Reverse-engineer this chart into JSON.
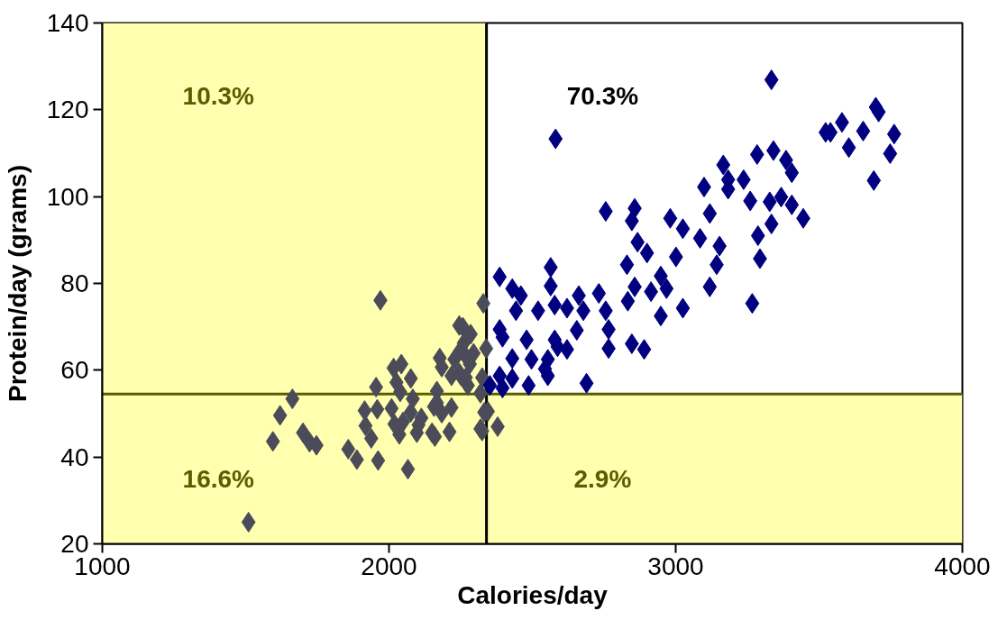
{
  "chart_data": {
    "type": "scatter",
    "xlabel": "Calories/day",
    "ylabel": "Protein/day (grams)",
    "xlim": [
      1000,
      4000
    ],
    "xticks": [
      1000,
      2000,
      3000,
      4000
    ],
    "ylim": [
      20,
      140
    ],
    "yticks": [
      20,
      40,
      60,
      80,
      100,
      120,
      140
    ],
    "grid": false,
    "marker": "diamond",
    "bands": [
      {
        "axis": "x",
        "from": 1000,
        "to": 2340,
        "color": "#ffffb0"
      },
      {
        "axis": "y",
        "from": 20,
        "to": 54.5,
        "color": "#ffffb0"
      }
    ],
    "ref_lines": [
      {
        "axis": "x",
        "value": 2340,
        "color": "#000000"
      },
      {
        "axis": "y",
        "value": 54.5,
        "color": "#5c5c00"
      }
    ],
    "annotations": [
      "10.3%",
      "70.3%",
      "16.6%",
      "2.9%"
    ],
    "series": [
      {
        "color": "#4b4b5a",
        "x": [
          1510,
          1970,
          1620,
          1663,
          1595,
          1700,
          1723,
          1747,
          1858,
          1888,
          1918,
          1938,
          1962,
          1955,
          1915,
          1959,
          2009,
          2039,
          2066,
          2049,
          2019,
          2036,
          2076,
          2083,
          2097,
          2103,
          2113,
          2016,
          2043,
          2026,
          2076,
          2157,
          2167,
          2150,
          2184,
          2184,
          2177,
          2167,
          2160,
          2211,
          2218,
          2228,
          2248,
          2245,
          2268,
          2261,
          2258,
          2261,
          2282,
          2245,
          2285,
          2295,
          2218,
          2251,
          2275,
          2319,
          2319,
          2332,
          2339,
          2329,
          2325,
          2345,
          2325,
          2379
        ],
        "values": [
          25,
          76.1,
          49.6,
          53.4,
          43.6,
          45.6,
          43.4,
          42.7,
          41.8,
          39.4,
          47.2,
          44.3,
          39.2,
          56.1,
          50.7,
          51,
          51.2,
          55,
          37.2,
          48.1,
          47.6,
          45.2,
          50.3,
          53.4,
          45.6,
          47.4,
          49,
          60.5,
          61.4,
          57.2,
          58.1,
          51.6,
          55.2,
          45.6,
          50.1,
          60.7,
          62.8,
          52.5,
          44.7,
          45.8,
          51.4,
          62.5,
          64.5,
          59.4,
          58.3,
          63.9,
          69.9,
          66.3,
          61.4,
          70.3,
          68.3,
          63.9,
          58.7,
          58.7,
          56.5,
          54.7,
          46.5,
          50.3,
          65,
          75.4,
          58.3,
          50.5,
          46,
          47
        ]
      },
      {
        "color": "#000080",
        "x": [
          2581,
          2386,
          2430,
          2460,
          2564,
          2564,
          2662,
          2732,
          2756,
          2857,
          2847,
          2867,
          2900,
          2830,
          2948,
          2981,
          3025,
          3085,
          3001,
          3119,
          3099,
          3119,
          2857,
          2914,
          2968,
          2833,
          2948,
          3025,
          2443,
          2520,
          2578,
          2621,
          2678,
          2756,
          2766,
          2386,
          2396,
          2480,
          2578,
          2655,
          2621,
          2554,
          2497,
          2430,
          2766,
          2847,
          2890,
          2386,
          2430,
          2487,
          2554,
          2689,
          2588,
          2544,
          3334,
          3698,
          3708,
          3580,
          3540,
          3523,
          3654,
          3762,
          3604,
          3748,
          3691,
          3166,
          3284,
          3341,
          3385,
          3405,
          3183,
          3183,
          3237,
          3260,
          3328,
          3368,
          3405,
          3445,
          3334,
          3287,
          3294,
          3153,
          3143,
          3267,
          2352,
          2396
        ],
        "values": [
          113.3,
          81.5,
          78.8,
          77.2,
          83.7,
          79.4,
          77.2,
          77.7,
          96.6,
          97.3,
          94.4,
          89.5,
          87,
          84.3,
          81.7,
          95,
          92.6,
          90.4,
          86.1,
          79.2,
          102.2,
          96.1,
          79.2,
          78.1,
          78.8,
          75.9,
          72.5,
          74.3,
          73.7,
          73.7,
          75,
          74.3,
          73.7,
          73.7,
          69.4,
          69.4,
          67.6,
          67,
          67,
          69.2,
          64.8,
          62.5,
          62.5,
          62.7,
          65,
          66.1,
          64.8,
          58.7,
          58.1,
          56.5,
          58.7,
          57,
          65.4,
          60.3,
          126.9,
          120.6,
          119.5,
          117.1,
          114.8,
          114.8,
          115.1,
          114.4,
          111.3,
          109.9,
          103.7,
          107.3,
          109.7,
          110.6,
          108.4,
          105.5,
          103.9,
          101.7,
          103.9,
          99,
          98.8,
          99.9,
          98.1,
          95,
          93.7,
          91,
          85.7,
          88.6,
          84.3,
          75.4,
          56.5,
          55.9
        ]
      }
    ]
  }
}
